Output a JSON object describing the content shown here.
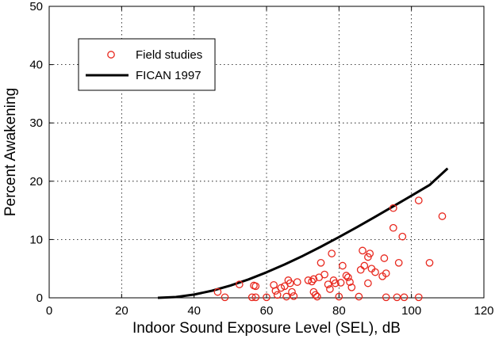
{
  "chart_data": {
    "type": "scatter",
    "xlabel": "Indoor Sound Exposure Level (SEL), dB",
    "ylabel": "Percent Awakening",
    "xlim": [
      0,
      120
    ],
    "ylim": [
      0,
      50
    ],
    "xticks": [
      0,
      20,
      40,
      60,
      80,
      100,
      120
    ],
    "yticks": [
      0,
      10,
      20,
      30,
      40,
      50
    ],
    "grid": true,
    "legend_position": "upper-left",
    "series": [
      {
        "name": "Field studies",
        "kind": "scatter",
        "marker": "open-circle",
        "color": "#e8281e",
        "points": [
          [
            46.5,
            1.0
          ],
          [
            48.5,
            0.1
          ],
          [
            52.5,
            2.3
          ],
          [
            56.0,
            0.1
          ],
          [
            56.5,
            2.1
          ],
          [
            57.0,
            2.0
          ],
          [
            57.0,
            0.1
          ],
          [
            60.0,
            0.1
          ],
          [
            62.0,
            2.2
          ],
          [
            62.5,
            1.2
          ],
          [
            63.0,
            0.5
          ],
          [
            64.0,
            1.7
          ],
          [
            65.0,
            2.0
          ],
          [
            65.5,
            0.2
          ],
          [
            66.0,
            3.0
          ],
          [
            66.5,
            2.5
          ],
          [
            67.0,
            1.0
          ],
          [
            67.5,
            0.3
          ],
          [
            68.5,
            2.7
          ],
          [
            71.5,
            3.0
          ],
          [
            72.5,
            2.8
          ],
          [
            73.0,
            3.2
          ],
          [
            73.0,
            1.0
          ],
          [
            73.5,
            0.5
          ],
          [
            74.0,
            0.2
          ],
          [
            74.5,
            3.5
          ],
          [
            75.0,
            6.0
          ],
          [
            76.0,
            4.0
          ],
          [
            77.0,
            2.3
          ],
          [
            77.5,
            1.5
          ],
          [
            78.0,
            7.6
          ],
          [
            78.5,
            3.0
          ],
          [
            79.0,
            2.5
          ],
          [
            80.0,
            0.2
          ],
          [
            80.5,
            2.6
          ],
          [
            81.0,
            5.5
          ],
          [
            82.0,
            3.8
          ],
          [
            82.5,
            3.5
          ],
          [
            83.0,
            2.7
          ],
          [
            83.5,
            1.8
          ],
          [
            85.5,
            0.2
          ],
          [
            86.0,
            4.8
          ],
          [
            86.5,
            8.1
          ],
          [
            87.0,
            5.5
          ],
          [
            88.0,
            7.0
          ],
          [
            88.0,
            2.5
          ],
          [
            88.5,
            7.6
          ],
          [
            89.0,
            5.0
          ],
          [
            90.0,
            4.4
          ],
          [
            92.0,
            3.7
          ],
          [
            92.5,
            6.8
          ],
          [
            93.0,
            4.2
          ],
          [
            93.0,
            0.1
          ],
          [
            95.0,
            15.4
          ],
          [
            95.0,
            12.0
          ],
          [
            96.0,
            0.1
          ],
          [
            96.5,
            6.0
          ],
          [
            97.5,
            10.5
          ],
          [
            98.0,
            0.1
          ],
          [
            102.0,
            16.7
          ],
          [
            102.0,
            0.1
          ],
          [
            105.0,
            6.0
          ],
          [
            108.5,
            14.0
          ]
        ]
      },
      {
        "name": "FICAN 1997",
        "kind": "line",
        "color": "#000000",
        "x": [
          30,
          35,
          40,
          45,
          50,
          55,
          60,
          65,
          70,
          75,
          80,
          85,
          90,
          95,
          100,
          105,
          110
        ],
        "y": [
          0.0,
          0.14,
          0.56,
          1.22,
          2.09,
          3.15,
          4.37,
          5.72,
          7.19,
          8.76,
          10.42,
          12.13,
          13.9,
          15.7,
          17.52,
          19.35,
          22.2
        ]
      }
    ]
  }
}
